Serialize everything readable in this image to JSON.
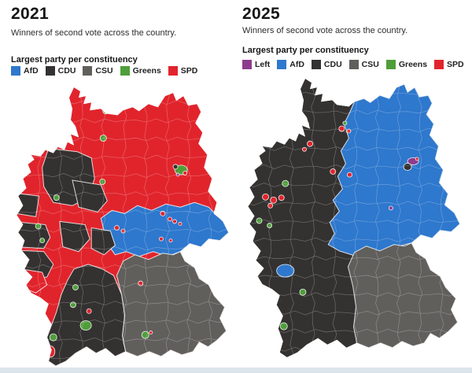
{
  "page": {
    "background": "#ffffff",
    "bottom_bar_color": "#dce4eb"
  },
  "colors": {
    "spd": "#e1242c",
    "cdu": "#343231",
    "csu": "#615f5c",
    "afd": "#2e78cd",
    "greens": "#4f9e3a",
    "left": "#8d3c8d"
  },
  "panels": [
    {
      "title": "2021",
      "subtitle": "Winners of second vote across the country.",
      "legend_title": "Largest party per constituency",
      "legend": [
        {
          "label": "AfD",
          "color": "#2e78cd"
        },
        {
          "label": "CDU",
          "color": "#343231"
        },
        {
          "label": "CSU",
          "color": "#615f5c"
        },
        {
          "label": "Greens",
          "color": "#4f9e3a"
        },
        {
          "label": "SPD",
          "color": "#e1242c"
        }
      ],
      "map_summary": {
        "north_and_centre": "SPD",
        "west": "SPD/CDU patchwork",
        "saxony_belt": "AfD",
        "bavaria": "CSU",
        "baden_wuerttemberg": "CDU",
        "big_cities": "Greens"
      }
    },
    {
      "title": "2025",
      "subtitle": "Winners of second vote across the country.",
      "legend_title": "Largest party per constituency",
      "legend": [
        {
          "label": "Left",
          "color": "#8d3c8d"
        },
        {
          "label": "AfD",
          "color": "#2e78cd"
        },
        {
          "label": "CDU",
          "color": "#343231"
        },
        {
          "label": "CSU",
          "color": "#615f5c"
        },
        {
          "label": "Greens",
          "color": "#4f9e3a"
        },
        {
          "label": "SPD",
          "color": "#e1242c"
        }
      ],
      "map_summary": {
        "west": "CDU",
        "east": "AfD",
        "bavaria": "CSU",
        "berlin": "Left/CDU mix",
        "scattered_cities": "SPD/Greens"
      }
    }
  ]
}
